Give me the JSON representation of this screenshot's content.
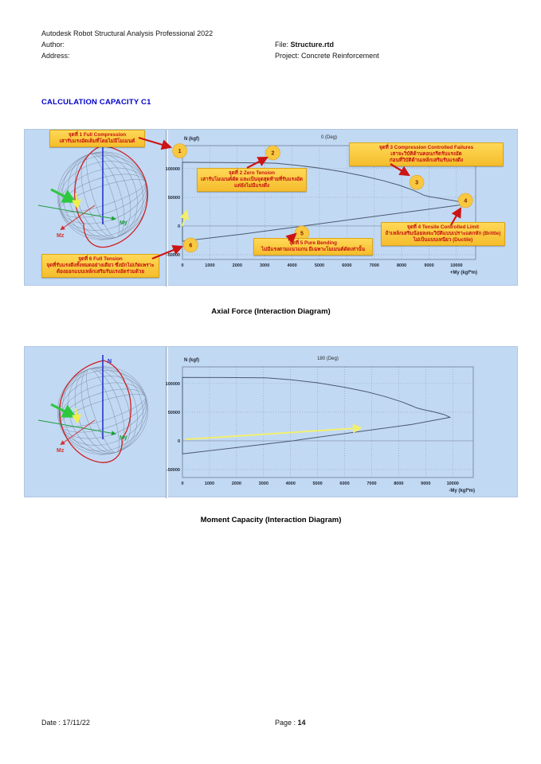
{
  "header": {
    "app_title": "Autodesk Robot Structural Analysis Professional 2022",
    "author_label": "Author:",
    "address_label": "Address:",
    "file_label": "File:",
    "file_value": "Structure.rtd",
    "project_label": "Project:",
    "project_value": "Concrete Reinforcement"
  },
  "section_title": "CALCULATION CAPACITY C1",
  "captions": {
    "chart1": "Axial Force (Interaction Diagram)",
    "chart2": "Moment Capacity (Interaction Diagram)"
  },
  "footer": {
    "date_label": "Date :",
    "date_value": "17/11/22",
    "page_label": "Page :",
    "page_value": "14"
  },
  "axes_3d": {
    "n": "N",
    "my": "My",
    "mz": "Mz"
  },
  "colors": {
    "panel_bg": "#c2d9f4",
    "callout_bg": "#f9c93f",
    "callout_text": "#c41111",
    "curve": "#4a5a70",
    "marker_fill": "#f8c841",
    "load_vector": "#f2ef6d",
    "heading_blue": "#0000cd",
    "arrow_red": "#cc1414"
  },
  "callouts": [
    {
      "marker": "1",
      "title": "จุดที่ 1 Full Compression",
      "lines": [
        "เสารับแรงอัดเต็มที่โดยไม่มีโมเมนต์"
      ]
    },
    {
      "marker": "2",
      "title": "จุดที่ 2 Zero Tension",
      "lines": [
        "เสารับโมเมนต์ดัด และเป็นจุดสุดท้ายที่รับแรงอัด",
        "แต่ยังไม่มีแรงดึง"
      ]
    },
    {
      "marker": "3",
      "title": "จุดที่ 3 Compression Controlled Failures",
      "lines": [
        "เสาจะวิบัติด้านคอนกรีตรับแรงอัด",
        "ก่อนที่วิบัติด้านเหล็กเสริมรับแรงดึง"
      ]
    },
    {
      "marker": "4",
      "title": "จุดที่ 4 Tensile Controlled Limit",
      "lines": [
        "ถ้าเหล็กเสริมน้อยลงจะวิบัติแบบเปราะแตกหัก (Brittle)",
        "ไม่เป็นแบบเหนียว (Ductile)"
      ]
    },
    {
      "marker": "5",
      "title": "จุดที่ 5 Pure Bending",
      "lines": [
        "ไม่มีแรงตามแนวแกน มีเฉพาะโมเมนต์ดัดเท่านั้น"
      ]
    },
    {
      "marker": "6",
      "title": "จุดที่ 6 Full Tension",
      "lines": [
        "จุดที่รับแรงดึงทั้งหมดอย่างเดียว ซึ่งมักไม่เกิดเพราะ",
        "ต้องออกแบบเหล็กเสริมรับแรงอัดร่วมด้วย"
      ]
    }
  ],
  "chart_data": [
    {
      "type": "line",
      "title": "0 (Deg)",
      "xlabel": "+My (kgf*m)",
      "ylabel": "N (kgf)",
      "xlim": [
        0,
        10700
      ],
      "ylim": [
        -58300,
        140000
      ],
      "xticks": [
        0,
        1000,
        2000,
        3000,
        4000,
        5000,
        6000,
        7000,
        8000,
        9000,
        10000
      ],
      "yticks": [
        -50000,
        0,
        50000,
        100000
      ],
      "grid": "dotted",
      "series": [
        {
          "name": "capacity-envelope",
          "points": [
            [
              0,
              111000
            ],
            [
              1500,
              110500
            ],
            [
              3000,
              109800
            ],
            [
              3400,
              109300
            ],
            [
              4200,
              105800
            ],
            [
              5000,
              100800
            ],
            [
              5800,
              94800
            ],
            [
              6600,
              87200
            ],
            [
              7300,
              79200
            ],
            [
              7900,
              71200
            ],
            [
              8400,
              62800
            ],
            [
              8650,
              57200
            ],
            [
              8800,
              53800
            ],
            [
              9000,
              51200
            ],
            [
              9400,
              48200
            ],
            [
              9900,
              44200
            ],
            [
              10300,
              40600
            ],
            [
              10450,
              38600
            ],
            [
              8500,
              26200
            ],
            [
              6500,
              13400
            ],
            [
              4400,
              0
            ],
            [
              2200,
              -14000
            ],
            [
              0,
              -26500
            ]
          ],
          "closed": true
        }
      ],
      "load_vector": {
        "from": [
          0,
          0
        ],
        "to": [
          150,
          26000
        ]
      },
      "markers": [
        {
          "label": "1",
          "my": -100,
          "n": 131000
        },
        {
          "label": "2",
          "my": 3300,
          "n": 127500
        },
        {
          "label": "3",
          "my": 8550,
          "n": 76000
        },
        {
          "label": "4",
          "my": 10330,
          "n": 44500
        },
        {
          "label": "5",
          "my": 4360,
          "n": -12500
        },
        {
          "label": "6",
          "my": 300,
          "n": -33300
        }
      ]
    },
    {
      "type": "line",
      "title": "180 (Deg)",
      "xlabel": "-My (kgf*m)",
      "ylabel": "N (kgf)",
      "xlim": [
        0,
        10760
      ],
      "ylim": [
        -64000,
        129000
      ],
      "xticks": [
        0,
        1000,
        2000,
        3000,
        4000,
        5000,
        6000,
        7000,
        8000,
        9000,
        10000
      ],
      "yticks": [
        -50000,
        0,
        50000,
        100000
      ],
      "grid": "dotted",
      "series": [
        {
          "name": "capacity-envelope",
          "points": [
            [
              0,
              110500
            ],
            [
              1500,
              110400
            ],
            [
              3100,
              110000
            ],
            [
              4000,
              106600
            ],
            [
              5000,
              101200
            ],
            [
              6000,
              93400
            ],
            [
              6800,
              85800
            ],
            [
              7500,
              77200
            ],
            [
              8100,
              68200
            ],
            [
              8500,
              60800
            ],
            [
              8650,
              57600
            ],
            [
              8900,
              54600
            ],
            [
              9300,
              50600
            ],
            [
              9700,
              45600
            ],
            [
              9900,
              41000
            ],
            [
              8500,
              28600
            ],
            [
              6500,
              15800
            ],
            [
              4400,
              2200
            ],
            [
              4100,
              0
            ],
            [
              2000,
              -11800
            ],
            [
              0,
              -22800
            ]
          ],
          "closed": true
        }
      ],
      "load_vector": {
        "from": [
          100,
          2500
        ],
        "to": [
          6600,
          22500
        ]
      },
      "markers": []
    }
  ]
}
